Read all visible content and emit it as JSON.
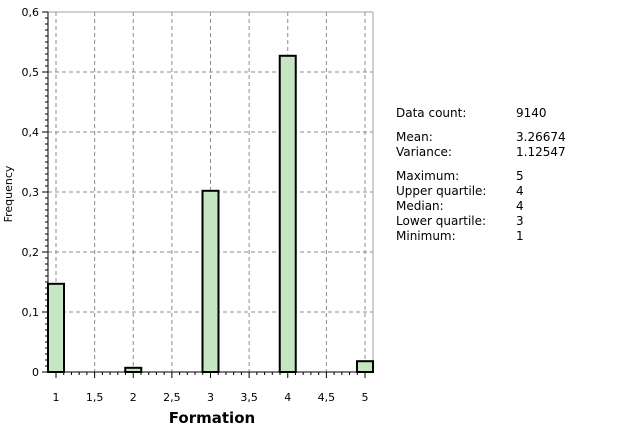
{
  "chart_data": {
    "type": "bar",
    "title": "",
    "xlabel": "Formation",
    "ylabel": "Frequency",
    "xlim": [
      1,
      5
    ],
    "ylim": [
      0,
      0.6
    ],
    "grid": true,
    "x_ticks": [
      "1",
      "1,5",
      "2",
      "2,5",
      "3",
      "3,5",
      "4",
      "4,5",
      "5"
    ],
    "x_tick_values": [
      1,
      1.5,
      2,
      2.5,
      3,
      3.5,
      4,
      4.5,
      5
    ],
    "y_ticks": [
      "0",
      "0,1",
      "0,2",
      "0,3",
      "0,4",
      "0,5",
      "0,6"
    ],
    "y_tick_values": [
      0,
      0.1,
      0.2,
      0.3,
      0.4,
      0.5,
      0.6
    ],
    "bars": [
      {
        "x": 1,
        "value": 0.147
      },
      {
        "x": 2,
        "value": 0.007
      },
      {
        "x": 3,
        "value": 0.302
      },
      {
        "x": 4,
        "value": 0.527
      },
      {
        "x": 5,
        "value": 0.018
      }
    ],
    "bar_fill": "#c6e6c3",
    "bar_stroke": "#000000"
  },
  "stats": [
    {
      "label": "Data count:",
      "value": "9140"
    },
    {
      "label": "Mean:",
      "value": "3.26674"
    },
    {
      "label": "Variance:",
      "value": "1.12547"
    },
    {
      "label": "Maximum:",
      "value": "5"
    },
    {
      "label": "Upper quartile:",
      "value": "4"
    },
    {
      "label": "Median:",
      "value": "4"
    },
    {
      "label": "Lower quartile:",
      "value": "3"
    },
    {
      "label": "Minimum:",
      "value": "1"
    }
  ]
}
